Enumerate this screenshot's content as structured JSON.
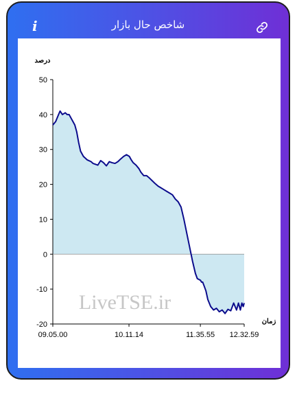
{
  "header": {
    "title": "شاخص حال بازار",
    "info_icon": "info-icon",
    "link_icon": "link-icon"
  },
  "colors": {
    "gradient_start": "#2f6ff0",
    "gradient_end": "#6f2fd6",
    "line": "#0b0b8c",
    "fill": "#cde8f2"
  },
  "watermark": "LiveTSE.ir",
  "chart_data": {
    "type": "area",
    "ylabel": "درصد",
    "xlabel": "زمان",
    "ylim": [
      -20,
      50
    ],
    "yticks": [
      "50",
      "40",
      "30",
      "20",
      "10",
      "0",
      "-10",
      "-20"
    ],
    "xticks": [
      "09.05.00",
      "10.11.14",
      "11.35.55",
      "12.32.59"
    ],
    "x_domain": [
      0,
      100
    ],
    "xtick_positions": [
      0,
      39.8,
      77.1,
      100
    ],
    "grid": false,
    "legend": "none",
    "series": [
      {
        "x": [
          0,
          1.5,
          3,
          3.8,
          5,
          6.5,
          7.5,
          8.5,
          9.5,
          10.5,
          11.5,
          12.5,
          13.5,
          14.5,
          16,
          18,
          20,
          21,
          22.5,
          23.5,
          25,
          26.5,
          28,
          29.5,
          31,
          32.5,
          34,
          35.5,
          37,
          38.5,
          40,
          41,
          42,
          43.5,
          45,
          46,
          47.5,
          49,
          50.5,
          52,
          53.5,
          55,
          56.5,
          58,
          59.5,
          61,
          62.5,
          64,
          65.5,
          67,
          68.5,
          70,
          71.5,
          73,
          74.5,
          75.5,
          76.5,
          77.2,
          77.7,
          78.3,
          79,
          80,
          81,
          82.5,
          84,
          85.5,
          87,
          88.5,
          90,
          91.5,
          93,
          94.5,
          96,
          97,
          98,
          98.8,
          99.5,
          100
        ],
        "y": [
          37,
          38,
          40,
          41,
          40,
          40.5,
          40,
          40,
          39,
          38,
          37,
          35,
          32,
          29.5,
          28,
          27,
          26.5,
          26,
          25.7,
          25.5,
          26.8,
          26.2,
          25.3,
          26.5,
          26.2,
          26,
          26.5,
          27.3,
          28,
          28.5,
          28,
          27,
          26.2,
          25.5,
          24.5,
          23.5,
          22.5,
          22.5,
          21.8,
          21,
          20.2,
          19.5,
          19,
          18.5,
          18,
          17.5,
          17,
          15.8,
          15,
          13.5,
          10,
          6,
          2,
          -2,
          -5.5,
          -7,
          -7.3,
          -7.5,
          -8,
          -8,
          -9,
          -10.5,
          -13,
          -15,
          -16,
          -15.5,
          -16.5,
          -16,
          -17,
          -15.8,
          -16.2,
          -14,
          -16,
          -14,
          -16,
          -14,
          -15,
          -14
        ]
      }
    ]
  }
}
